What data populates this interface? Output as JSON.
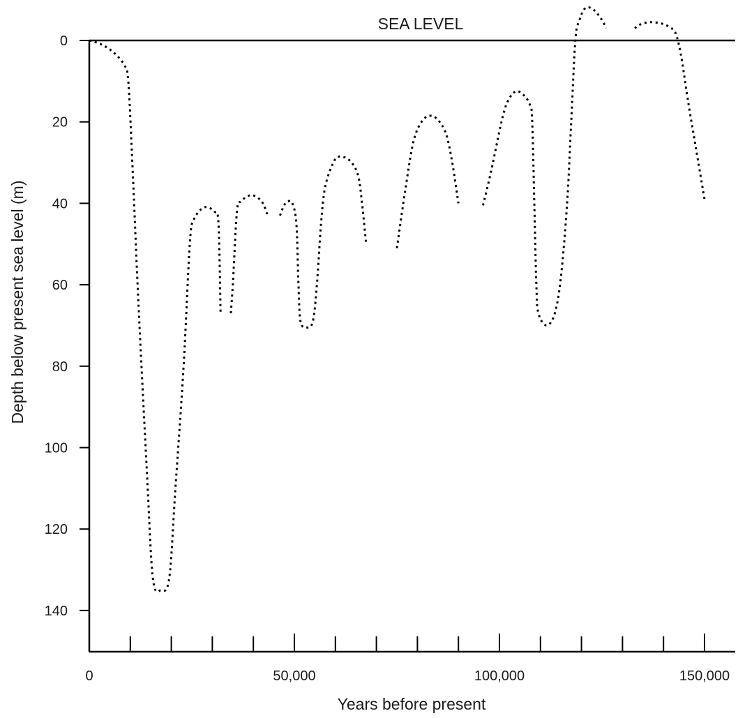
{
  "chart_data": {
    "type": "line",
    "title": "",
    "annotation": "SEA LEVEL",
    "xlabel": "Years before present",
    "ylabel": "Depth below present sea level (m)",
    "xlim": [
      0,
      158000
    ],
    "ylim": [
      -8,
      150
    ],
    "y_inverted": true,
    "x_ticks_major": [
      0,
      50000,
      100000,
      150000
    ],
    "x_tick_labels": [
      "0",
      "50,000",
      "100,000",
      "150,000"
    ],
    "x_ticks_minor": [
      10000,
      20000,
      30000,
      40000,
      60000,
      70000,
      80000,
      90000,
      110000,
      120000,
      130000,
      140000
    ],
    "y_ticks": [
      0,
      20,
      40,
      60,
      80,
      100,
      120,
      140
    ],
    "y_tick_labels": [
      "0",
      "20",
      "40",
      "60",
      "80",
      "100",
      "120",
      "140"
    ],
    "grid": false,
    "line_style": "dotted",
    "series": [
      {
        "values": [
          [
            0,
            0
          ],
          [
            3000,
            1
          ],
          [
            6000,
            3
          ],
          [
            8500,
            6
          ],
          [
            9500,
            10
          ],
          [
            10500,
            30
          ],
          [
            12000,
            65
          ],
          [
            14000,
            105
          ],
          [
            15500,
            132
          ],
          [
            17500,
            135
          ],
          [
            19500,
            132
          ],
          [
            21000,
            110
          ],
          [
            23000,
            80
          ],
          [
            24500,
            50
          ],
          [
            25500,
            44
          ],
          [
            28000,
            41
          ],
          [
            30500,
            42
          ],
          [
            31500,
            45
          ],
          [
            32000,
            67
          ]
        ]
      },
      {
        "values": [
          [
            34500,
            67
          ],
          [
            35000,
            60
          ],
          [
            36000,
            42
          ],
          [
            37000,
            39.5
          ],
          [
            39500,
            38
          ],
          [
            42000,
            39.5
          ],
          [
            43500,
            43
          ]
        ]
      },
      {
        "values": [
          [
            46500,
            43
          ],
          [
            47500,
            40.5
          ],
          [
            48500,
            39.5
          ],
          [
            49500,
            40
          ],
          [
            50500,
            45
          ],
          [
            51000,
            60
          ],
          [
            51500,
            69
          ],
          [
            53000,
            70.5
          ],
          [
            54500,
            69
          ],
          [
            55500,
            60
          ],
          [
            56500,
            45
          ],
          [
            57500,
            36
          ],
          [
            59500,
            30
          ],
          [
            61000,
            28.5
          ],
          [
            63500,
            29.5
          ],
          [
            65500,
            33
          ],
          [
            66500,
            40
          ],
          [
            67500,
            50
          ]
        ]
      },
      {
        "values": [
          [
            75000,
            51
          ],
          [
            77000,
            37
          ],
          [
            79000,
            25
          ],
          [
            81000,
            20
          ],
          [
            83000,
            18.5
          ],
          [
            85000,
            19.5
          ],
          [
            87000,
            23
          ],
          [
            88500,
            30
          ],
          [
            90000,
            40
          ]
        ]
      },
      {
        "values": [
          [
            96000,
            40.5
          ],
          [
            98000,
            32
          ],
          [
            100500,
            20
          ],
          [
            102000,
            15
          ],
          [
            104000,
            12.5
          ],
          [
            106000,
            13.5
          ],
          [
            107500,
            16
          ],
          [
            108000,
            20
          ],
          [
            108500,
            40
          ],
          [
            109000,
            60
          ],
          [
            109500,
            67
          ],
          [
            111500,
            70
          ],
          [
            113500,
            67
          ],
          [
            115000,
            58
          ],
          [
            116500,
            40
          ],
          [
            117500,
            20
          ],
          [
            118500,
            0
          ],
          [
            119500,
            -5
          ],
          [
            121000,
            -8
          ],
          [
            123000,
            -7.5
          ],
          [
            125000,
            -5
          ],
          [
            126000,
            -3
          ]
        ]
      },
      {
        "values": [
          [
            133000,
            -3
          ],
          [
            134500,
            -4
          ],
          [
            137000,
            -4.5
          ],
          [
            140000,
            -4
          ],
          [
            142500,
            -2.5
          ],
          [
            143500,
            0
          ],
          [
            144500,
            5
          ],
          [
            146000,
            15
          ],
          [
            148000,
            27
          ],
          [
            150000,
            39
          ]
        ]
      }
    ]
  }
}
